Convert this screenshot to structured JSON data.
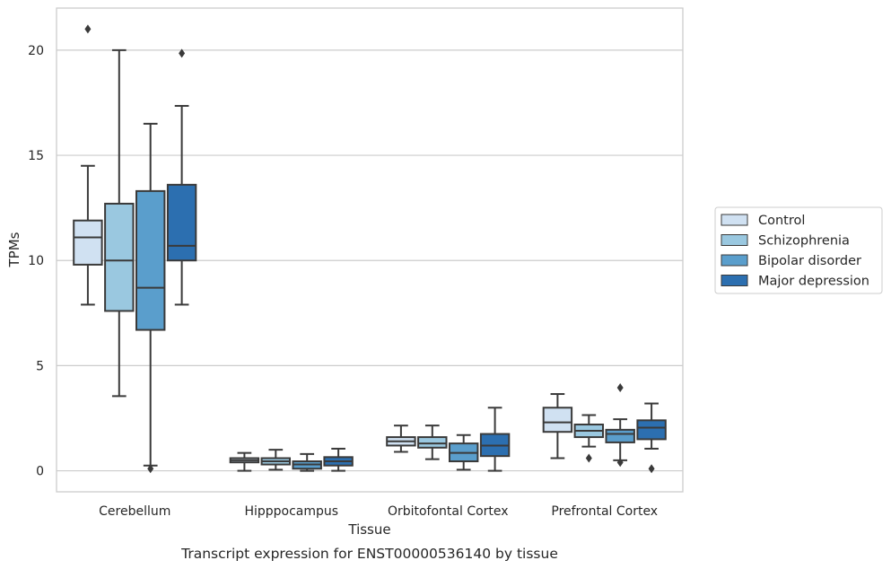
{
  "chart_data": {
    "type": "box",
    "caption": "Transcript expression for ENST00000536140 by tissue",
    "xlabel": "Tissue",
    "ylabel": "TPMs",
    "ylim": [
      -1.0,
      22.0
    ],
    "yticks": [
      0,
      5,
      10,
      15,
      20
    ],
    "grid": "horizontal",
    "legend_position": "right",
    "categories": [
      "Cerebellum",
      "Hipppocampus",
      "Orbitofontal Cortex",
      "Prefrontal Cortex"
    ],
    "series": [
      {
        "name": "Control",
        "color": "#d0e1f2",
        "boxes": [
          {
            "whislo": 7.9,
            "q1": 9.8,
            "med": 11.1,
            "q3": 11.9,
            "whishi": 14.5,
            "fliers": [
              21.0
            ]
          },
          {
            "whislo": 0.0,
            "q1": 0.4,
            "med": 0.5,
            "q3": 0.6,
            "whishi": 0.85,
            "fliers": []
          },
          {
            "whislo": 0.9,
            "q1": 1.2,
            "med": 1.4,
            "q3": 1.6,
            "whishi": 2.15,
            "fliers": []
          },
          {
            "whislo": 0.6,
            "q1": 1.85,
            "med": 2.3,
            "q3": 3.0,
            "whishi": 3.65,
            "fliers": []
          }
        ]
      },
      {
        "name": "Schizophrenia",
        "color": "#9ac8e0",
        "boxes": [
          {
            "whislo": 3.55,
            "q1": 7.6,
            "med": 10.0,
            "q3": 12.7,
            "whishi": 20.0,
            "fliers": []
          },
          {
            "whislo": 0.05,
            "q1": 0.3,
            "med": 0.45,
            "q3": 0.6,
            "whishi": 1.0,
            "fliers": []
          },
          {
            "whislo": 0.55,
            "q1": 1.1,
            "med": 1.3,
            "q3": 1.6,
            "whishi": 2.15,
            "fliers": []
          },
          {
            "whislo": 1.15,
            "q1": 1.6,
            "med": 1.9,
            "q3": 2.2,
            "whishi": 2.65,
            "fliers": [
              0.6
            ]
          }
        ]
      },
      {
        "name": "Bipolar disorder",
        "color": "#5a9ecc",
        "boxes": [
          {
            "whislo": 0.25,
            "q1": 6.7,
            "med": 8.7,
            "q3": 13.3,
            "whishi": 16.5,
            "fliers": [
              0.1
            ]
          },
          {
            "whislo": 0.0,
            "q1": 0.1,
            "med": 0.3,
            "q3": 0.45,
            "whishi": 0.8,
            "fliers": []
          },
          {
            "whislo": 0.05,
            "q1": 0.45,
            "med": 0.85,
            "q3": 1.3,
            "whishi": 1.7,
            "fliers": []
          },
          {
            "whislo": 0.5,
            "q1": 1.35,
            "med": 1.75,
            "q3": 1.95,
            "whishi": 2.45,
            "fliers": [
              0.4,
              3.95
            ]
          }
        ]
      },
      {
        "name": "Major depression",
        "color": "#2c6fb0",
        "boxes": [
          {
            "whislo": 7.9,
            "q1": 10.0,
            "med": 10.7,
            "q3": 13.6,
            "whishi": 17.35,
            "fliers": [
              19.85
            ]
          },
          {
            "whislo": 0.0,
            "q1": 0.25,
            "med": 0.45,
            "q3": 0.65,
            "whishi": 1.05,
            "fliers": []
          },
          {
            "whislo": 0.0,
            "q1": 0.7,
            "med": 1.2,
            "q3": 1.75,
            "whishi": 3.0,
            "fliers": []
          },
          {
            "whislo": 1.05,
            "q1": 1.5,
            "med": 2.05,
            "q3": 2.4,
            "whishi": 3.2,
            "fliers": [
              0.1
            ]
          }
        ]
      }
    ]
  }
}
